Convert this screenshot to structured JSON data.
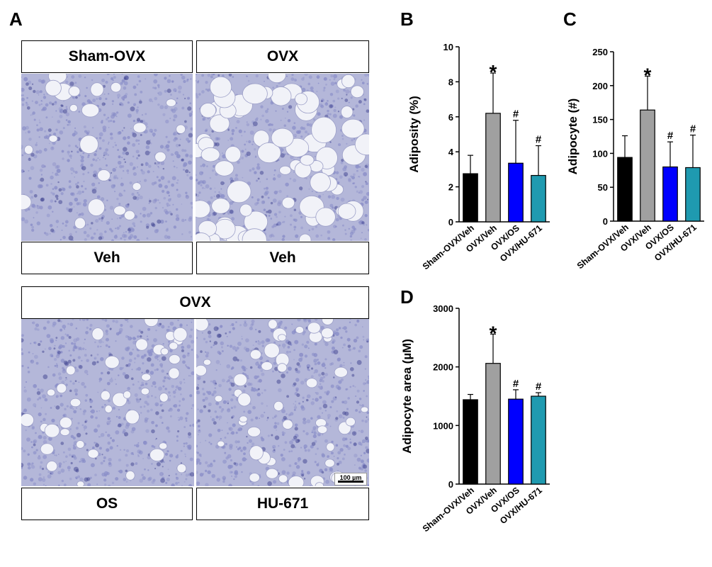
{
  "panel_a": {
    "letter": "A",
    "top_headers": [
      "Sham-OVX",
      "OVX"
    ],
    "top_footers": [
      "Veh",
      "Veh"
    ],
    "bottom_header": "OVX",
    "bottom_footers": [
      "OS",
      "HU-671"
    ],
    "scale_bar_text": "100 µm",
    "stain_color": "#8a8ec8"
  },
  "chart_data": [
    {
      "letter": "B",
      "type": "bar",
      "categories": [
        "Sham-OVX/Veh",
        "OVX/Veh",
        "OVX/OS",
        "OVX/HU-671"
      ],
      "values": [
        2.75,
        6.2,
        3.35,
        2.65
      ],
      "errors": [
        1.05,
        2.3,
        2.45,
        1.7
      ],
      "marks": [
        "",
        "*",
        "#",
        "#"
      ],
      "colors": [
        "#000000",
        "#a0a0a0",
        "#0000ff",
        "#1f9ab0"
      ],
      "ylabel": "Adiposity (%)",
      "ylim": [
        0,
        10
      ],
      "yticks": [
        0,
        2,
        4,
        6,
        8,
        10
      ],
      "yticklabels": [
        "0",
        "2",
        "4",
        "6",
        "8",
        "10"
      ],
      "grid": false
    },
    {
      "letter": "C",
      "type": "bar",
      "categories": [
        "Sham-OVX/Veh",
        "OVX/Veh",
        "OVX/OS",
        "OVX/HU-671"
      ],
      "values": [
        94,
        164,
        80,
        79
      ],
      "errors": [
        32,
        50,
        37,
        48
      ],
      "marks": [
        "",
        "*",
        "#",
        "#"
      ],
      "colors": [
        "#000000",
        "#a0a0a0",
        "#0000ff",
        "#1f9ab0"
      ],
      "ylabel": "Adipocyte (#)",
      "ylim": [
        0,
        250
      ],
      "yticks": [
        0,
        50,
        100,
        150,
        200,
        250
      ],
      "yticklabels": [
        "0",
        "50",
        "100",
        "150",
        "200",
        "250"
      ],
      "grid": false
    },
    {
      "letter": "D",
      "type": "bar",
      "categories": [
        "Sham-OVX/Veh",
        "OVX/Veh",
        "OVX/OS",
        "OVX/HU-671"
      ],
      "values": [
        1440,
        2060,
        1450,
        1500
      ],
      "errors": [
        90,
        500,
        160,
        60
      ],
      "marks": [
        "",
        "*",
        "#",
        "#"
      ],
      "colors": [
        "#000000",
        "#a0a0a0",
        "#0000ff",
        "#1f9ab0"
      ],
      "ylabel": "Adipocyte area (µM)",
      "ylim": [
        0,
        3000
      ],
      "yticks": [
        0,
        1000,
        2000,
        3000
      ],
      "yticklabels": [
        "0",
        "1000",
        "2000",
        "3000"
      ],
      "grid": false
    }
  ]
}
